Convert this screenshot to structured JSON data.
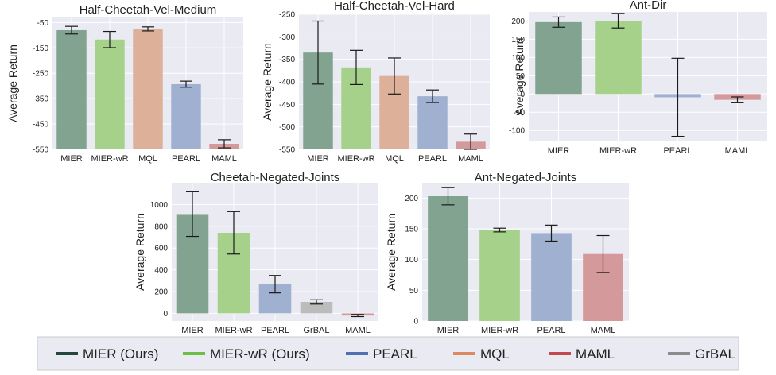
{
  "chart_data": [
    {
      "type": "bar",
      "title": "Half-Cheetah-Vel-Medium",
      "ylabel": "Average Return",
      "categories": [
        "MIER",
        "MIER-wR",
        "MQL",
        "PEARL",
        "MAML"
      ],
      "values": [
        -80,
        -117,
        -75,
        -293,
        -528
      ],
      "errors": [
        15,
        32,
        8,
        12,
        16
      ],
      "colors": [
        "#81a38f",
        "#a5d18b",
        "#dcb099",
        "#a0b0d0",
        "#d4999b"
      ],
      "ylim": [
        -550,
        -30
      ],
      "yticks": [
        -50,
        -150,
        -250,
        -350,
        -450,
        -550
      ],
      "ytick_labels": [
        "-50",
        "-150",
        "-250",
        "-350",
        "-450",
        "-550"
      ]
    },
    {
      "type": "bar",
      "title": "Half-Cheetah-Vel-Hard",
      "ylabel": "Average Return",
      "categories": [
        "MIER",
        "MIER-wR",
        "MQL",
        "PEARL",
        "MAML"
      ],
      "values": [
        -335,
        -368,
        -387,
        -432,
        -533
      ],
      "errors": [
        70,
        38,
        40,
        14,
        17
      ],
      "colors": [
        "#81a38f",
        "#a5d18b",
        "#dcb099",
        "#a0b0d0",
        "#d4999b"
      ],
      "ylim": [
        -550,
        -250
      ],
      "yticks": [
        -250,
        -300,
        -350,
        -400,
        -450,
        -500,
        -550
      ],
      "ytick_labels": [
        "-250",
        "-300",
        "-350",
        "-400",
        "-450",
        "-500",
        "-550"
      ]
    },
    {
      "type": "bar",
      "title": "Ant-Dir",
      "ylabel": "Average Return",
      "categories": [
        "MIER",
        "MIER-wR",
        "PEARL",
        "MAML"
      ],
      "values": [
        197,
        201,
        -9,
        -16
      ],
      "errors": [
        14,
        20,
        107,
        8
      ],
      "colors": [
        "#81a38f",
        "#a5d18b",
        "#a0b0d0",
        "#d4999b"
      ],
      "ylim": [
        -130,
        225
      ],
      "yticks": [
        200,
        150,
        100,
        50,
        0,
        -50,
        -100
      ],
      "ytick_labels": [
        "200",
        "150",
        "100",
        "50",
        "0",
        "-50",
        "-100"
      ]
    },
    {
      "type": "bar",
      "title": "Cheetah-Negated-Joints",
      "ylabel": "Average Return",
      "categories": [
        "MIER",
        "MIER-wR",
        "PEARL",
        "GrBAL",
        "MAML"
      ],
      "values": [
        912,
        740,
        268,
        105,
        -20
      ],
      "errors": [
        205,
        195,
        80,
        20,
        10
      ],
      "colors": [
        "#81a38f",
        "#a5d18b",
        "#a0b0d0",
        "#bcbcbc",
        "#d4999b"
      ],
      "ylim": [
        -70,
        1200
      ],
      "yticks": [
        1000,
        800,
        600,
        400,
        200,
        0
      ],
      "ytick_labels": [
        "1000",
        "800",
        "600",
        "400",
        "200",
        "0"
      ]
    },
    {
      "type": "bar",
      "title": "Ant-Negated-Joints",
      "ylabel": "Average Return",
      "categories": [
        "MIER",
        "MIER-wR",
        "PEARL",
        "MAML"
      ],
      "values": [
        203,
        148,
        143,
        109
      ],
      "errors": [
        14,
        3,
        13,
        30
      ],
      "colors": [
        "#81a38f",
        "#a5d18b",
        "#a0b0d0",
        "#d4999b"
      ],
      "ylim": [
        0,
        225
      ],
      "yticks": [
        200,
        150,
        100,
        50,
        0
      ],
      "ytick_labels": [
        "200",
        "150",
        "100",
        "50",
        "0"
      ]
    }
  ],
  "legend": [
    {
      "label": "MIER (Ours)",
      "color": "#24483a"
    },
    {
      "label": "MIER-wR (Ours)",
      "color": "#6cbf44"
    },
    {
      "label": "PEARL",
      "color": "#5070b0"
    },
    {
      "label": "MQL",
      "color": "#dc8c5c"
    },
    {
      "label": "MAML",
      "color": "#c24a4e"
    },
    {
      "label": "GrBAL",
      "color": "#8c8c8c"
    }
  ]
}
